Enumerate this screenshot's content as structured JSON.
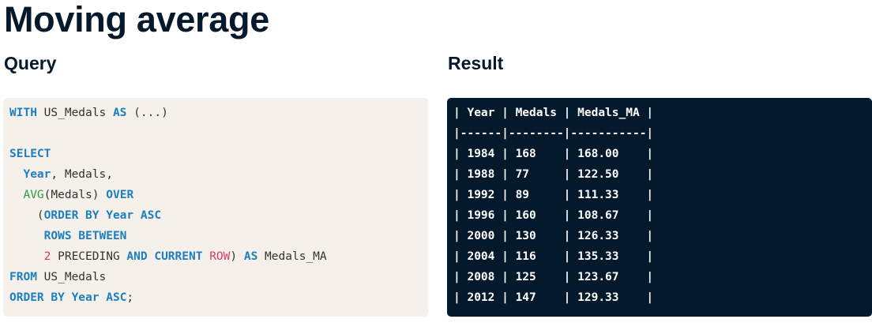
{
  "page": {
    "title": "Moving average"
  },
  "query": {
    "heading": "Query",
    "lines": [
      [
        {
          "t": "WITH",
          "k": "kw"
        },
        {
          "t": " US_Medals ",
          "k": "plain"
        },
        {
          "t": "AS",
          "k": "kw"
        },
        {
          "t": " (...)",
          "k": "plain"
        }
      ],
      [],
      [
        {
          "t": "SELECT",
          "k": "kw"
        }
      ],
      [
        {
          "t": "  ",
          "k": "plain"
        },
        {
          "t": "Year",
          "k": "kw"
        },
        {
          "t": ", Medals,",
          "k": "plain"
        }
      ],
      [
        {
          "t": "  ",
          "k": "plain"
        },
        {
          "t": "AVG",
          "k": "fn"
        },
        {
          "t": "(Medals) ",
          "k": "plain"
        },
        {
          "t": "OVER",
          "k": "kw"
        }
      ],
      [
        {
          "t": "    (",
          "k": "plain"
        },
        {
          "t": "ORDER BY Year ASC",
          "k": "kw"
        }
      ],
      [
        {
          "t": "     ",
          "k": "plain"
        },
        {
          "t": "ROWS BETWEEN",
          "k": "kw"
        }
      ],
      [
        {
          "t": "     ",
          "k": "plain"
        },
        {
          "t": "2",
          "k": "num"
        },
        {
          "t": " PRECEDING ",
          "k": "plain"
        },
        {
          "t": "AND CURRENT",
          "k": "kw"
        },
        {
          "t": " ",
          "k": "plain"
        },
        {
          "t": "ROW",
          "k": "num"
        },
        {
          "t": ") ",
          "k": "plain"
        },
        {
          "t": "AS",
          "k": "kw"
        },
        {
          "t": " Medals_MA",
          "k": "plain"
        }
      ],
      [
        {
          "t": "FROM",
          "k": "kw"
        },
        {
          "t": " US_Medals",
          "k": "plain"
        }
      ],
      [
        {
          "t": "ORDER BY Year ASC",
          "k": "kw"
        },
        {
          "t": ";",
          "k": "plain"
        }
      ]
    ]
  },
  "result": {
    "heading": "Result",
    "lines": [
      "| Year | Medals | Medals_MA |",
      "|------|--------|-----------|",
      "| 1984 | 168    | 168.00    |",
      "| 1988 | 77     | 122.50    |",
      "| 1992 | 89     | 111.33    |",
      "| 1996 | 160    | 108.67    |",
      "| 2000 | 130    | 126.33    |",
      "| 2004 | 116    | 135.33    |",
      "| 2008 | 125    | 123.67    |",
      "| 2012 | 147    | 129.33    |"
    ]
  },
  "colors": {
    "title_text": "#05192d",
    "query_bg": "#f5f1ea",
    "result_bg": "#05192d",
    "keyword": "#1d7fbf",
    "function": "#2e9a3a",
    "number": "#d83a6f"
  }
}
